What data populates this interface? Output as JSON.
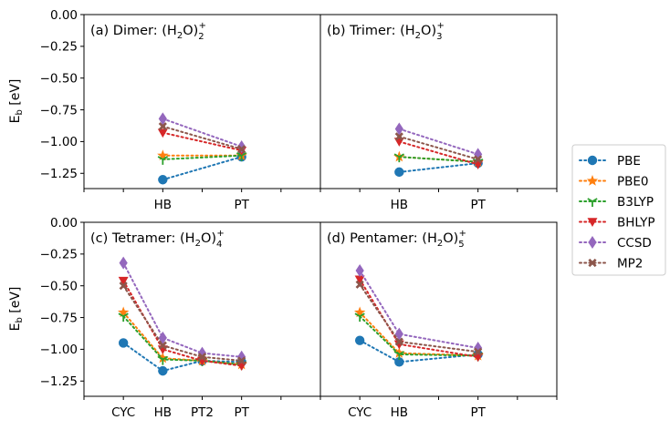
{
  "chart_data": {
    "type": "line",
    "ylabel": "E_b [eV]",
    "ylim": [
      -1.37,
      0.0
    ],
    "yticks": [
      0.0,
      -0.25,
      -0.5,
      -0.75,
      -1.0,
      -1.25
    ],
    "ytick_labels": [
      "0.00",
      "−0.25",
      "−0.50",
      "−0.75",
      "−1.00",
      "−1.25"
    ],
    "methods": [
      {
        "name": "PBE",
        "color": "#1f77b4",
        "marker": "circle"
      },
      {
        "name": "PBE0",
        "color": "#ff7f0e",
        "marker": "star"
      },
      {
        "name": "B3LYP",
        "color": "#2ca02c",
        "marker": "tri_down"
      },
      {
        "name": "BHLYP",
        "color": "#d62728",
        "marker": "triangle_down"
      },
      {
        "name": "CCSD",
        "color": "#9467bd",
        "marker": "diamond"
      },
      {
        "name": "MP2",
        "color": "#8c564b",
        "marker": "x"
      }
    ],
    "panels": [
      {
        "title_prefix": "(a) Dimer: (H",
        "title_sub": "2",
        "title_mid": "O)",
        "title_sub2": "2",
        "title_sup": "+",
        "categories": [
          "HB",
          "PT"
        ],
        "positions": [
          2,
          4
        ],
        "series": [
          {
            "name": "PBE",
            "values": [
              -1.3,
              -1.12
            ]
          },
          {
            "name": "PBE0",
            "values": [
              -1.11,
              -1.11
            ]
          },
          {
            "name": "B3LYP",
            "values": [
              -1.14,
              -1.11
            ]
          },
          {
            "name": "BHLYP",
            "values": [
              -0.93,
              -1.07
            ]
          },
          {
            "name": "CCSD",
            "values": [
              -0.82,
              -1.04
            ]
          },
          {
            "name": "MP2",
            "values": [
              -0.88,
              -1.06
            ]
          }
        ]
      },
      {
        "title_prefix": "(b) Trimer: (H",
        "title_sub": "2",
        "title_mid": "O)",
        "title_sub2": "3",
        "title_sup": "+",
        "categories": [
          "HB",
          "PT"
        ],
        "positions": [
          2,
          4
        ],
        "series": [
          {
            "name": "PBE",
            "values": [
              -1.24,
              -1.17
            ]
          },
          {
            "name": "PBE0",
            "values": [
              -1.12,
              -1.16
            ]
          },
          {
            "name": "B3LYP",
            "values": [
              -1.12,
              -1.16
            ]
          },
          {
            "name": "BHLYP",
            "values": [
              -1.0,
              -1.18
            ]
          },
          {
            "name": "CCSD",
            "values": [
              -0.9,
              -1.1
            ]
          },
          {
            "name": "MP2",
            "values": [
              -0.96,
              -1.14
            ]
          }
        ]
      },
      {
        "title_prefix": "(c) Tetramer: (H",
        "title_sub": "2",
        "title_mid": "O)",
        "title_sub2": "4",
        "title_sup": "+",
        "categories": [
          "CYC",
          "HB",
          "PT2",
          "PT"
        ],
        "positions": [
          1,
          2,
          3,
          4
        ],
        "series": [
          {
            "name": "PBE",
            "values": [
              -0.95,
              -1.17,
              -1.09,
              -1.1
            ]
          },
          {
            "name": "PBE0",
            "values": [
              -0.71,
              -1.07,
              -1.09,
              -1.12
            ]
          },
          {
            "name": "B3LYP",
            "values": [
              -0.74,
              -1.08,
              -1.09,
              -1.12
            ]
          },
          {
            "name": "BHLYP",
            "values": [
              -0.46,
              -1.0,
              -1.09,
              -1.13
            ]
          },
          {
            "name": "CCSD",
            "values": [
              -0.32,
              -0.91,
              -1.03,
              -1.06
            ]
          },
          {
            "name": "MP2",
            "values": [
              -0.5,
              -0.97,
              -1.06,
              -1.09
            ]
          }
        ]
      },
      {
        "title_prefix": "(d) Pentamer: (H",
        "title_sub": "2",
        "title_mid": "O)",
        "title_sub2": "5",
        "title_sup": "+",
        "categories": [
          "CYC",
          "HB",
          "PT"
        ],
        "positions": [
          1,
          2,
          4
        ],
        "series": [
          {
            "name": "PBE",
            "values": [
              -0.93,
              -1.1,
              -1.04
            ]
          },
          {
            "name": "PBE0",
            "values": [
              -0.71,
              -1.03,
              -1.05
            ]
          },
          {
            "name": "B3LYP",
            "values": [
              -0.74,
              -1.04,
              -1.05
            ]
          },
          {
            "name": "BHLYP",
            "values": [
              -0.45,
              -0.96,
              -1.06
            ]
          },
          {
            "name": "CCSD",
            "values": [
              -0.38,
              -0.88,
              -0.99
            ]
          },
          {
            "name": "MP2",
            "values": [
              -0.49,
              -0.94,
              -1.02
            ]
          }
        ]
      }
    ]
  }
}
